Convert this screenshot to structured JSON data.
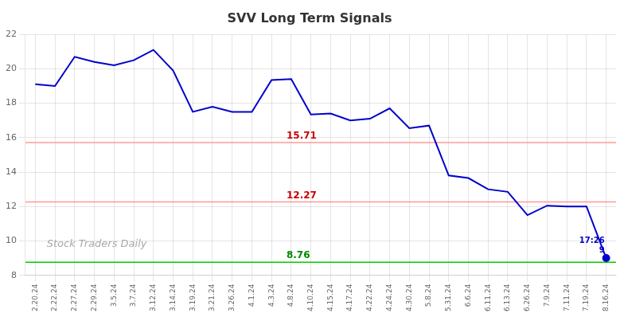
{
  "chart_data": {
    "type": "line",
    "title": "SVV Long Term Signals",
    "categories": [
      "2.20.24",
      "2.22.24",
      "2.27.24",
      "2.29.24",
      "3.5.24",
      "3.7.24",
      "3.12.24",
      "3.14.24",
      "3.19.24",
      "3.21.24",
      "3.26.24",
      "4.1.24",
      "4.3.24",
      "4.8.24",
      "4.10.24",
      "4.15.24",
      "4.17.24",
      "4.22.24",
      "4.24.24",
      "4.30.24",
      "5.8.24",
      "5.31.24",
      "6.6.24",
      "6.11.24",
      "6.13.24",
      "6.26.24",
      "7.9.24",
      "7.11.24",
      "7.19.24",
      "8.16.24"
    ],
    "values": [
      19.1,
      19.0,
      20.7,
      20.4,
      20.2,
      20.5,
      21.1,
      19.9,
      17.5,
      17.8,
      17.5,
      17.5,
      19.35,
      19.4,
      17.35,
      17.4,
      17.0,
      17.1,
      17.7,
      16.55,
      16.7,
      13.8,
      13.65,
      13.0,
      12.85,
      11.5,
      12.05,
      12.0,
      12.0,
      9.0
    ],
    "color": "#0000cc",
    "ylim": [
      8,
      22
    ],
    "yticks": [
      8,
      10,
      12,
      14,
      16,
      18,
      20,
      22
    ],
    "grid": true,
    "hlines": [
      {
        "value": 15.71,
        "label": "15.71",
        "color": "#ff9999",
        "label_color": "#cc0000"
      },
      {
        "value": 12.27,
        "label": "12.27",
        "color": "#ff9999",
        "label_color": "#cc0000"
      },
      {
        "value": 8.76,
        "label": "8.76",
        "color": "#00cc00",
        "label_color": "#008800"
      }
    ],
    "annotations": [
      {
        "text": "17:26",
        "category": "8.16.24"
      },
      {
        "text": "9",
        "category": "8.16.24"
      },
      {
        "text": "Stock Traders Daily"
      }
    ]
  }
}
